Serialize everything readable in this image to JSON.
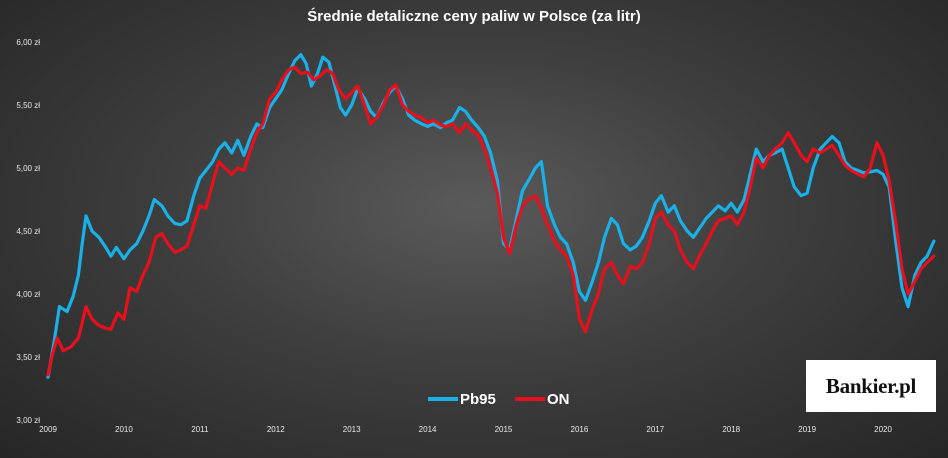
{
  "chart_data": {
    "type": "line",
    "title": "Średnie detaliczne ceny paliw w Polsce (za litr)",
    "xlabel": "",
    "ylabel": "",
    "x_tick_labels": [
      "2009",
      "2010",
      "2011",
      "2012",
      "2013",
      "2014",
      "2015",
      "2016",
      "2017",
      "2018",
      "2019",
      "2020"
    ],
    "y_tick_labels": [
      "3,00 zł",
      "3,50 zł",
      "4,00 zł",
      "4,50 zł",
      "5,00 zł",
      "5,50 zł",
      "6,00 zł"
    ],
    "ylim": [
      3.0,
      6.0
    ],
    "xlim": [
      2009.0,
      2020.75
    ],
    "grid": false,
    "legend_position": "bottom-center",
    "series": [
      {
        "name": "Pb95",
        "color": "#1ab0e8",
        "points": [
          [
            2009.0,
            3.34
          ],
          [
            2009.08,
            3.62
          ],
          [
            2009.15,
            3.9
          ],
          [
            2009.25,
            3.86
          ],
          [
            2009.33,
            3.98
          ],
          [
            2009.4,
            4.15
          ],
          [
            2009.45,
            4.4
          ],
          [
            2009.5,
            4.62
          ],
          [
            2009.58,
            4.5
          ],
          [
            2009.67,
            4.45
          ],
          [
            2009.75,
            4.38
          ],
          [
            2009.83,
            4.3
          ],
          [
            2009.9,
            4.37
          ],
          [
            2010.0,
            4.28
          ],
          [
            2010.08,
            4.35
          ],
          [
            2010.17,
            4.4
          ],
          [
            2010.25,
            4.5
          ],
          [
            2010.33,
            4.62
          ],
          [
            2010.4,
            4.75
          ],
          [
            2010.5,
            4.7
          ],
          [
            2010.58,
            4.62
          ],
          [
            2010.67,
            4.56
          ],
          [
            2010.75,
            4.55
          ],
          [
            2010.83,
            4.58
          ],
          [
            2010.92,
            4.78
          ],
          [
            2011.0,
            4.92
          ],
          [
            2011.08,
            4.98
          ],
          [
            2011.17,
            5.05
          ],
          [
            2011.25,
            5.15
          ],
          [
            2011.33,
            5.2
          ],
          [
            2011.42,
            5.12
          ],
          [
            2011.5,
            5.22
          ],
          [
            2011.58,
            5.1
          ],
          [
            2011.67,
            5.25
          ],
          [
            2011.75,
            5.35
          ],
          [
            2011.83,
            5.32
          ],
          [
            2011.92,
            5.48
          ],
          [
            2012.0,
            5.55
          ],
          [
            2012.08,
            5.62
          ],
          [
            2012.17,
            5.75
          ],
          [
            2012.25,
            5.85
          ],
          [
            2012.33,
            5.9
          ],
          [
            2012.4,
            5.83
          ],
          [
            2012.47,
            5.65
          ],
          [
            2012.55,
            5.75
          ],
          [
            2012.62,
            5.88
          ],
          [
            2012.7,
            5.84
          ],
          [
            2012.78,
            5.65
          ],
          [
            2012.85,
            5.48
          ],
          [
            2012.92,
            5.42
          ],
          [
            2013.0,
            5.5
          ],
          [
            2013.08,
            5.63
          ],
          [
            2013.17,
            5.55
          ],
          [
            2013.25,
            5.45
          ],
          [
            2013.33,
            5.4
          ],
          [
            2013.42,
            5.52
          ],
          [
            2013.5,
            5.6
          ],
          [
            2013.58,
            5.65
          ],
          [
            2013.67,
            5.55
          ],
          [
            2013.75,
            5.42
          ],
          [
            2013.83,
            5.38
          ],
          [
            2013.92,
            5.35
          ],
          [
            2014.0,
            5.33
          ],
          [
            2014.08,
            5.35
          ],
          [
            2014.17,
            5.32
          ],
          [
            2014.25,
            5.36
          ],
          [
            2014.33,
            5.38
          ],
          [
            2014.42,
            5.48
          ],
          [
            2014.5,
            5.45
          ],
          [
            2014.58,
            5.38
          ],
          [
            2014.67,
            5.32
          ],
          [
            2014.75,
            5.25
          ],
          [
            2014.83,
            5.12
          ],
          [
            2014.92,
            4.9
          ],
          [
            2015.0,
            4.4
          ],
          [
            2015.08,
            4.35
          ],
          [
            2015.17,
            4.6
          ],
          [
            2015.25,
            4.82
          ],
          [
            2015.33,
            4.9
          ],
          [
            2015.42,
            5.0
          ],
          [
            2015.5,
            5.05
          ],
          [
            2015.58,
            4.7
          ],
          [
            2015.67,
            4.55
          ],
          [
            2015.75,
            4.45
          ],
          [
            2015.83,
            4.4
          ],
          [
            2015.92,
            4.25
          ],
          [
            2016.0,
            4.02
          ],
          [
            2016.08,
            3.95
          ],
          [
            2016.17,
            4.1
          ],
          [
            2016.25,
            4.25
          ],
          [
            2016.33,
            4.45
          ],
          [
            2016.42,
            4.6
          ],
          [
            2016.5,
            4.55
          ],
          [
            2016.58,
            4.4
          ],
          [
            2016.67,
            4.35
          ],
          [
            2016.75,
            4.38
          ],
          [
            2016.83,
            4.45
          ],
          [
            2016.92,
            4.58
          ],
          [
            2017.0,
            4.72
          ],
          [
            2017.08,
            4.78
          ],
          [
            2017.17,
            4.65
          ],
          [
            2017.25,
            4.7
          ],
          [
            2017.33,
            4.58
          ],
          [
            2017.42,
            4.5
          ],
          [
            2017.5,
            4.45
          ],
          [
            2017.58,
            4.52
          ],
          [
            2017.67,
            4.6
          ],
          [
            2017.75,
            4.65
          ],
          [
            2017.83,
            4.7
          ],
          [
            2017.92,
            4.66
          ],
          [
            2018.0,
            4.72
          ],
          [
            2018.08,
            4.65
          ],
          [
            2018.17,
            4.75
          ],
          [
            2018.25,
            4.95
          ],
          [
            2018.33,
            5.15
          ],
          [
            2018.42,
            5.05
          ],
          [
            2018.5,
            5.1
          ],
          [
            2018.58,
            5.12
          ],
          [
            2018.67,
            5.15
          ],
          [
            2018.75,
            5.0
          ],
          [
            2018.83,
            4.85
          ],
          [
            2018.92,
            4.78
          ],
          [
            2019.0,
            4.8
          ],
          [
            2019.08,
            5.0
          ],
          [
            2019.17,
            5.15
          ],
          [
            2019.25,
            5.2
          ],
          [
            2019.33,
            5.25
          ],
          [
            2019.42,
            5.2
          ],
          [
            2019.5,
            5.05
          ],
          [
            2019.58,
            5.0
          ],
          [
            2019.67,
            4.98
          ],
          [
            2019.75,
            4.96
          ],
          [
            2019.83,
            4.97
          ],
          [
            2019.92,
            4.98
          ],
          [
            2020.0,
            4.95
          ],
          [
            2020.08,
            4.85
          ],
          [
            2020.17,
            4.4
          ],
          [
            2020.25,
            4.05
          ],
          [
            2020.33,
            3.9
          ],
          [
            2020.42,
            4.15
          ],
          [
            2020.5,
            4.25
          ],
          [
            2020.58,
            4.3
          ],
          [
            2020.67,
            4.42
          ]
        ]
      },
      {
        "name": "ON",
        "color": "#e8101c",
        "points": [
          [
            2009.0,
            3.36
          ],
          [
            2009.05,
            3.5
          ],
          [
            2009.12,
            3.65
          ],
          [
            2009.2,
            3.55
          ],
          [
            2009.3,
            3.58
          ],
          [
            2009.4,
            3.65
          ],
          [
            2009.5,
            3.9
          ],
          [
            2009.58,
            3.8
          ],
          [
            2009.67,
            3.75
          ],
          [
            2009.75,
            3.73
          ],
          [
            2009.83,
            3.72
          ],
          [
            2009.92,
            3.85
          ],
          [
            2010.0,
            3.8
          ],
          [
            2010.08,
            4.05
          ],
          [
            2010.17,
            4.02
          ],
          [
            2010.25,
            4.15
          ],
          [
            2010.33,
            4.25
          ],
          [
            2010.42,
            4.45
          ],
          [
            2010.5,
            4.48
          ],
          [
            2010.58,
            4.4
          ],
          [
            2010.67,
            4.33
          ],
          [
            2010.75,
            4.35
          ],
          [
            2010.83,
            4.38
          ],
          [
            2010.92,
            4.55
          ],
          [
            2011.0,
            4.7
          ],
          [
            2011.08,
            4.68
          ],
          [
            2011.17,
            4.88
          ],
          [
            2011.25,
            5.05
          ],
          [
            2011.33,
            5.0
          ],
          [
            2011.42,
            4.95
          ],
          [
            2011.5,
            5.0
          ],
          [
            2011.58,
            4.98
          ],
          [
            2011.67,
            5.15
          ],
          [
            2011.75,
            5.28
          ],
          [
            2011.83,
            5.35
          ],
          [
            2011.92,
            5.55
          ],
          [
            2012.0,
            5.6
          ],
          [
            2012.08,
            5.7
          ],
          [
            2012.17,
            5.78
          ],
          [
            2012.25,
            5.8
          ],
          [
            2012.33,
            5.75
          ],
          [
            2012.42,
            5.76
          ],
          [
            2012.5,
            5.7
          ],
          [
            2012.58,
            5.73
          ],
          [
            2012.67,
            5.78
          ],
          [
            2012.75,
            5.75
          ],
          [
            2012.83,
            5.62
          ],
          [
            2012.92,
            5.55
          ],
          [
            2013.0,
            5.6
          ],
          [
            2013.08,
            5.65
          ],
          [
            2013.17,
            5.5
          ],
          [
            2013.25,
            5.35
          ],
          [
            2013.33,
            5.4
          ],
          [
            2013.42,
            5.5
          ],
          [
            2013.5,
            5.62
          ],
          [
            2013.58,
            5.66
          ],
          [
            2013.67,
            5.5
          ],
          [
            2013.75,
            5.45
          ],
          [
            2013.83,
            5.42
          ],
          [
            2013.92,
            5.4
          ],
          [
            2014.0,
            5.36
          ],
          [
            2014.08,
            5.38
          ],
          [
            2014.17,
            5.34
          ],
          [
            2014.25,
            5.33
          ],
          [
            2014.33,
            5.35
          ],
          [
            2014.42,
            5.28
          ],
          [
            2014.5,
            5.35
          ],
          [
            2014.58,
            5.3
          ],
          [
            2014.67,
            5.26
          ],
          [
            2014.75,
            5.15
          ],
          [
            2014.83,
            5.0
          ],
          [
            2014.92,
            4.8
          ],
          [
            2015.0,
            4.45
          ],
          [
            2015.08,
            4.32
          ],
          [
            2015.17,
            4.55
          ],
          [
            2015.25,
            4.7
          ],
          [
            2015.33,
            4.75
          ],
          [
            2015.42,
            4.78
          ],
          [
            2015.5,
            4.68
          ],
          [
            2015.58,
            4.55
          ],
          [
            2015.67,
            4.42
          ],
          [
            2015.75,
            4.35
          ],
          [
            2015.83,
            4.3
          ],
          [
            2015.92,
            4.15
          ],
          [
            2016.0,
            3.8
          ],
          [
            2016.08,
            3.7
          ],
          [
            2016.17,
            3.88
          ],
          [
            2016.25,
            4.0
          ],
          [
            2016.33,
            4.2
          ],
          [
            2016.42,
            4.25
          ],
          [
            2016.5,
            4.15
          ],
          [
            2016.58,
            4.08
          ],
          [
            2016.67,
            4.22
          ],
          [
            2016.75,
            4.2
          ],
          [
            2016.83,
            4.25
          ],
          [
            2016.92,
            4.4
          ],
          [
            2017.0,
            4.6
          ],
          [
            2017.08,
            4.65
          ],
          [
            2017.17,
            4.55
          ],
          [
            2017.25,
            4.5
          ],
          [
            2017.33,
            4.35
          ],
          [
            2017.42,
            4.25
          ],
          [
            2017.5,
            4.2
          ],
          [
            2017.58,
            4.3
          ],
          [
            2017.67,
            4.4
          ],
          [
            2017.75,
            4.5
          ],
          [
            2017.83,
            4.58
          ],
          [
            2017.92,
            4.6
          ],
          [
            2018.0,
            4.62
          ],
          [
            2018.08,
            4.55
          ],
          [
            2018.17,
            4.65
          ],
          [
            2018.25,
            4.85
          ],
          [
            2018.33,
            5.08
          ],
          [
            2018.42,
            5.0
          ],
          [
            2018.5,
            5.1
          ],
          [
            2018.58,
            5.15
          ],
          [
            2018.67,
            5.2
          ],
          [
            2018.75,
            5.28
          ],
          [
            2018.83,
            5.2
          ],
          [
            2018.92,
            5.1
          ],
          [
            2019.0,
            5.05
          ],
          [
            2019.08,
            5.15
          ],
          [
            2019.17,
            5.12
          ],
          [
            2019.25,
            5.15
          ],
          [
            2019.33,
            5.18
          ],
          [
            2019.42,
            5.1
          ],
          [
            2019.5,
            5.02
          ],
          [
            2019.58,
            4.98
          ],
          [
            2019.67,
            4.95
          ],
          [
            2019.75,
            4.93
          ],
          [
            2019.83,
            5.0
          ],
          [
            2019.92,
            5.2
          ],
          [
            2020.0,
            5.1
          ],
          [
            2020.08,
            4.9
          ],
          [
            2020.17,
            4.55
          ],
          [
            2020.25,
            4.2
          ],
          [
            2020.33,
            4.0
          ],
          [
            2020.42,
            4.1
          ],
          [
            2020.5,
            4.2
          ],
          [
            2020.58,
            4.25
          ],
          [
            2020.67,
            4.3
          ]
        ]
      }
    ]
  },
  "logo": {
    "text": "Bankier.pl"
  }
}
